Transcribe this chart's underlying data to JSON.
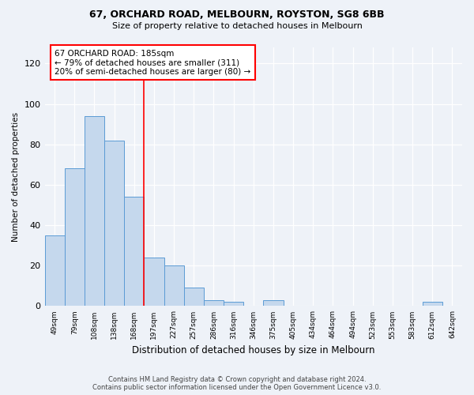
{
  "title1": "67, ORCHARD ROAD, MELBOURN, ROYSTON, SG8 6BB",
  "title2": "Size of property relative to detached houses in Melbourn",
  "xlabel": "Distribution of detached houses by size in Melbourn",
  "ylabel": "Number of detached properties",
  "categories": [
    "49sqm",
    "79sqm",
    "108sqm",
    "138sqm",
    "168sqm",
    "197sqm",
    "227sqm",
    "257sqm",
    "286sqm",
    "316sqm",
    "346sqm",
    "375sqm",
    "405sqm",
    "434sqm",
    "464sqm",
    "494sqm",
    "523sqm",
    "553sqm",
    "583sqm",
    "612sqm",
    "642sqm"
  ],
  "values": [
    35,
    68,
    94,
    82,
    54,
    24,
    20,
    9,
    3,
    2,
    0,
    3,
    0,
    0,
    0,
    0,
    0,
    0,
    0,
    2,
    0
  ],
  "bar_color": "#c5d8ed",
  "bar_edge_color": "#5b9bd5",
  "vline_x": 4.5,
  "annotation_line1": "67 ORCHARD ROAD: 185sqm",
  "annotation_line2": "← 79% of detached houses are smaller (311)",
  "annotation_line3": "20% of semi-detached houses are larger (80) →",
  "annotation_box_color": "white",
  "annotation_box_edge": "red",
  "vline_color": "red",
  "ylim": [
    0,
    128
  ],
  "yticks": [
    0,
    20,
    40,
    60,
    80,
    100,
    120
  ],
  "footer1": "Contains HM Land Registry data © Crown copyright and database right 2024.",
  "footer2": "Contains public sector information licensed under the Open Government Licence v3.0.",
  "bg_color": "#eef2f8"
}
